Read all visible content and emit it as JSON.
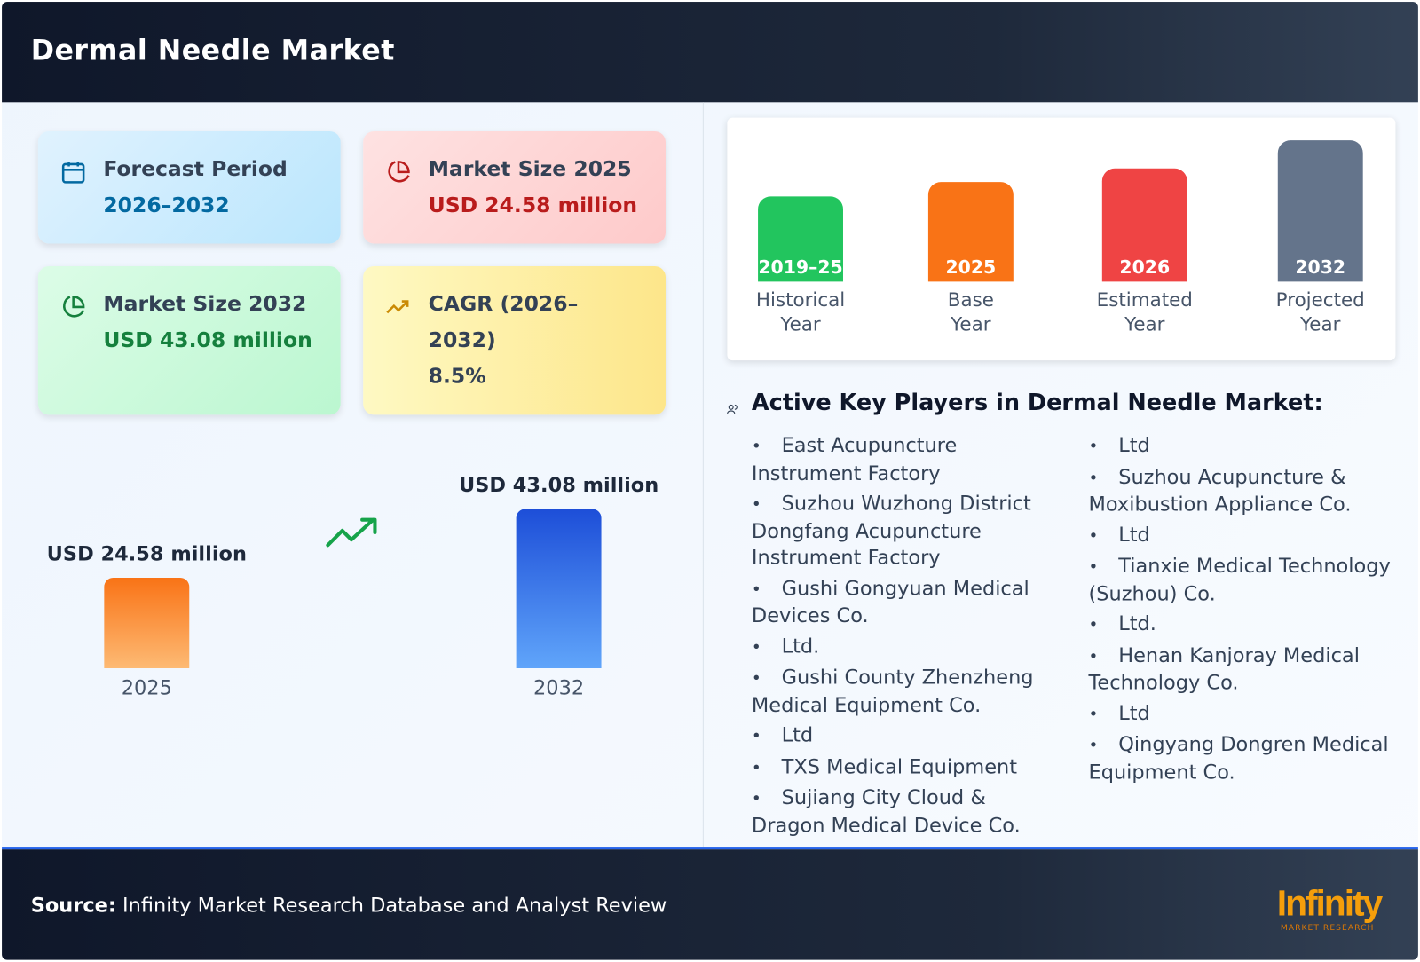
{
  "header": {
    "title": "Dermal Needle Market"
  },
  "cards": [
    {
      "label": "Forecast Period",
      "value": "2026–2032"
    },
    {
      "label": "Market Size 2025",
      "value": "USD 24.58 million"
    },
    {
      "label": "Market Size 2032",
      "value": "USD 43.08 million"
    },
    {
      "label": "CAGR (2026–2032)",
      "value": "8.5%"
    }
  ],
  "comparison": {
    "categories": [
      "2025",
      "2032"
    ],
    "values": [
      24.58,
      43.08
    ],
    "value_labels": [
      "USD 24.58 million",
      "USD 43.08 million"
    ]
  },
  "timeline": [
    {
      "year": "2019–25",
      "label": "Historical Year"
    },
    {
      "year": "2025",
      "label": "Base Year"
    },
    {
      "year": "2026",
      "label": "Estimated Year"
    },
    {
      "year": "2032",
      "label": "Projected Year"
    }
  ],
  "players": {
    "title": "Active Key Players in Dermal Needle Market:",
    "columns": [
      [
        "East Acupuncture Instrument Factory",
        "Suzhou Wuzhong District Dongfang Acupuncture Instrument Factory",
        "Gushi Gongyuan Medical Devices Co.",
        "Ltd.",
        "Gushi County Zhenzheng Medical Equipment Co.",
        "Ltd",
        "TXS Medical Equipment",
        "Sujiang City Cloud & Dragon Medical Device Co."
      ],
      [
        "Ltd",
        "Suzhou Acupuncture & Moxibustion Appliance Co.",
        "Ltd",
        "Tianxie Medical Technology (Suzhou) Co.",
        "Ltd.",
        "Henan Kanjoray Medical Technology Co.",
        "Ltd",
        "Qingyang Dongren Medical Equipment Co."
      ]
    ]
  },
  "footer": {
    "source_label": "Source:",
    "source_text": "Infinity Market Research Database and Analyst Review",
    "logo": "Infinity",
    "logo_sub": "MARKET RESEARCH"
  }
}
